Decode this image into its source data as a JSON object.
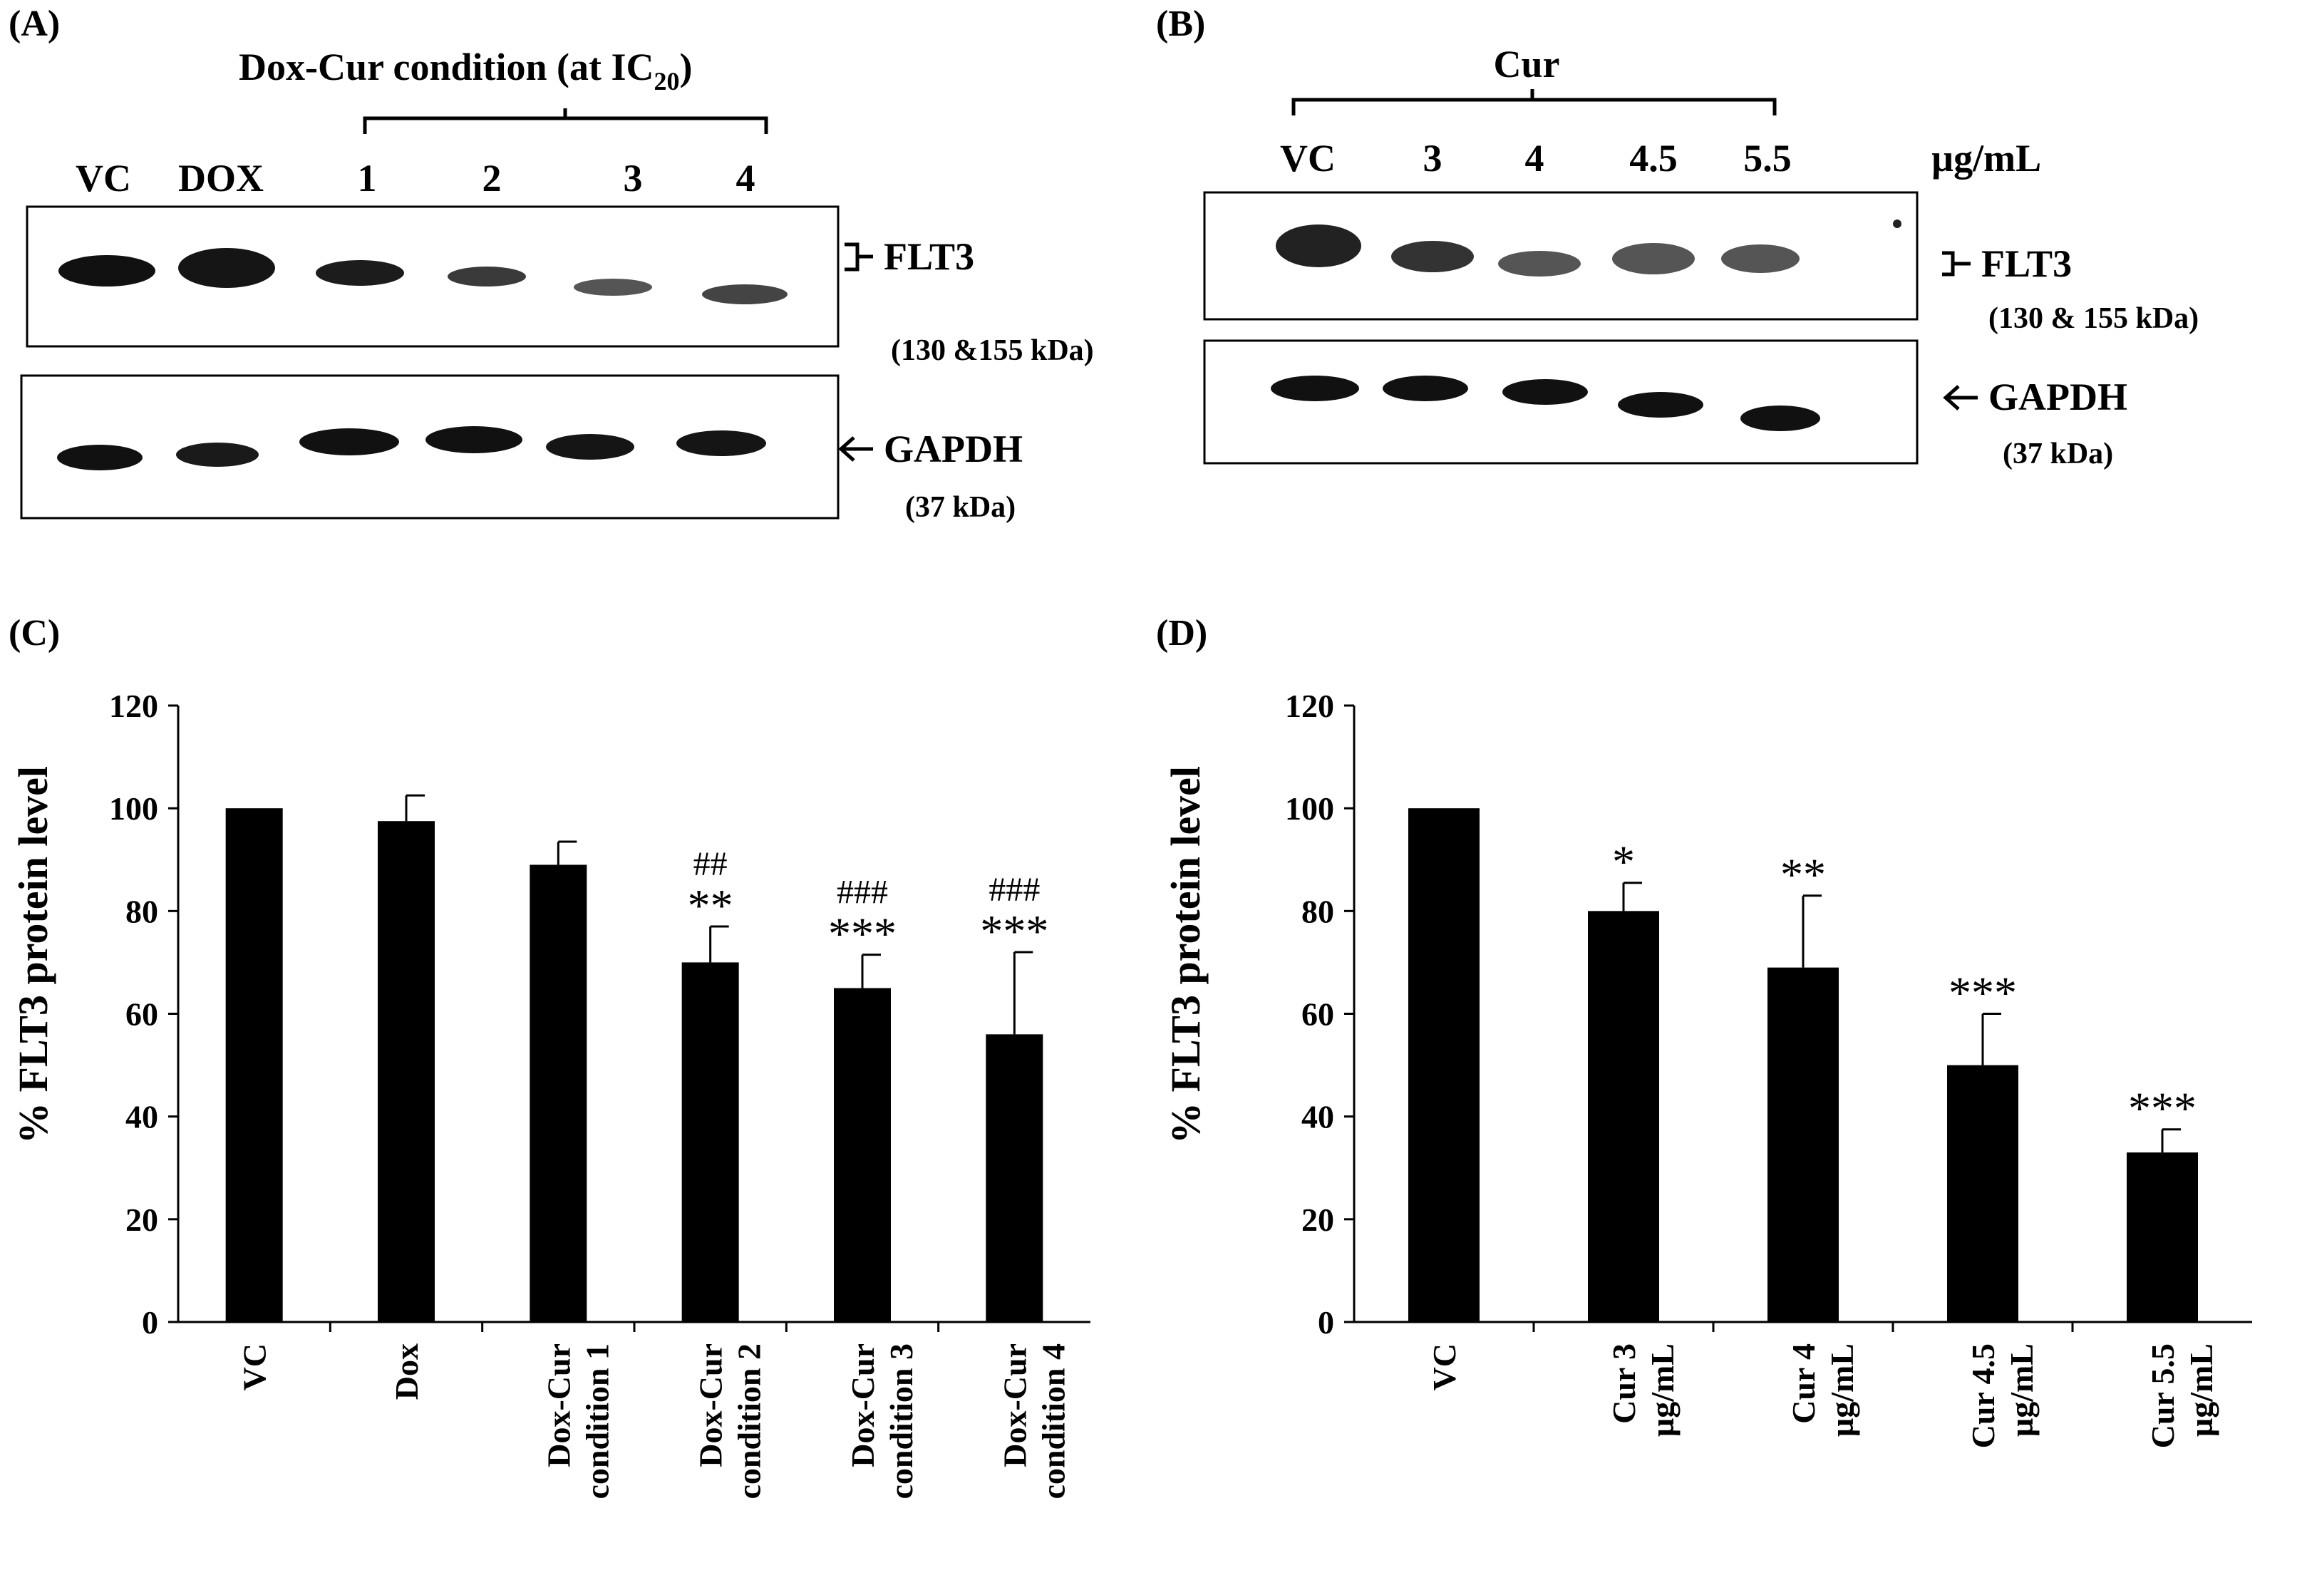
{
  "panels": {
    "a": "(A)",
    "b": "(B)",
    "c": "(C)",
    "d": "(D)"
  },
  "blot_a": {
    "group_label": "Dox-Cur  condition  (at IC",
    "group_sub": "20",
    "group_close": ")",
    "lanes": [
      "VC",
      "DOX",
      "1",
      "2",
      "3",
      "4"
    ],
    "band1_name": "FLT3",
    "band1_size": "(130 &155 kDa)",
    "band2_name": "GAPDH",
    "band2_size": "(37 kDa)"
  },
  "blot_b": {
    "group_label": "Cur",
    "lanes": [
      "VC",
      "3",
      "4",
      "4.5",
      "5.5"
    ],
    "unit": "µg/mL",
    "band1_name": "FLT3",
    "band1_size": "(130 & 155 kDa)",
    "band2_name": "GAPDH",
    "band2_size": "(37 kDa)"
  },
  "chart_data": [
    {
      "type": "bar",
      "panel": "C",
      "ylabel": "% FLT3 protein level",
      "xlabel": "",
      "ylim": [
        0,
        120
      ],
      "yticks": [
        0,
        20,
        40,
        60,
        80,
        100,
        120
      ],
      "categories": [
        [
          "VC"
        ],
        [
          "Dox"
        ],
        [
          "Dox-Cur",
          "condition 1"
        ],
        [
          "Dox-Cur",
          "condition 2"
        ],
        [
          "Dox-Cur",
          "condition 3"
        ],
        [
          "Dox-Cur",
          "condition 4"
        ]
      ],
      "values": [
        100,
        97.5,
        89,
        70,
        65,
        56
      ],
      "errors": [
        0,
        5,
        4.5,
        7,
        6.5,
        16
      ],
      "stars": [
        "",
        "",
        "",
        "**",
        "***",
        "***"
      ],
      "hashes": [
        "",
        "",
        "",
        "##",
        "###",
        "###"
      ]
    },
    {
      "type": "bar",
      "panel": "D",
      "ylabel": "% FLT3 protein level",
      "xlabel": "",
      "ylim": [
        0,
        120
      ],
      "yticks": [
        0,
        20,
        40,
        60,
        80,
        100,
        120
      ],
      "categories": [
        [
          "VC"
        ],
        [
          "Cur 3",
          "µg/mL"
        ],
        [
          "Cur 4",
          "µg/mL"
        ],
        [
          "Cur 4.5",
          "µg/mL"
        ],
        [
          "Cur 5.5",
          "µg/mL"
        ]
      ],
      "values": [
        100,
        80,
        69,
        50,
        33
      ],
      "errors": [
        0,
        5.5,
        14,
        10,
        4.5
      ],
      "stars": [
        "",
        "*",
        "**",
        "***",
        "***"
      ],
      "hashes": [
        "",
        "",
        "",
        "",
        ""
      ]
    }
  ]
}
